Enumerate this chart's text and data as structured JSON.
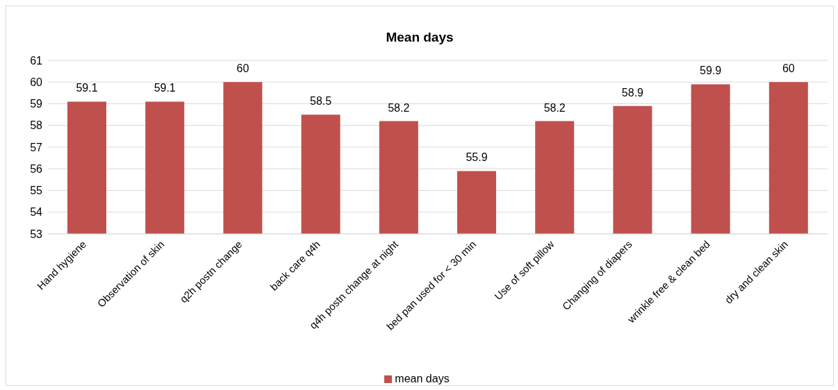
{
  "chart_data": {
    "type": "bar",
    "title": "Mean days",
    "categories": [
      "Hand hygiene",
      "Observation of skin",
      "q2h postn change",
      "back care q4h",
      "q4h postn change at night",
      "bed pan used for < 30 min",
      "Use of soft pillow",
      "Changing of diapers",
      "wrinkle free & clean bed",
      "dry and clean skin"
    ],
    "series": [
      {
        "name": "mean days",
        "color": "#c0504d",
        "values": [
          59.1,
          59.1,
          60,
          58.5,
          58.2,
          55.9,
          58.2,
          58.9,
          59.9,
          60
        ]
      }
    ],
    "ylim": [
      53,
      61
    ],
    "yticks": [
      53,
      54,
      55,
      56,
      57,
      58,
      59,
      60,
      61
    ],
    "grid": "y",
    "legend": "bottom",
    "data_labels": true
  }
}
